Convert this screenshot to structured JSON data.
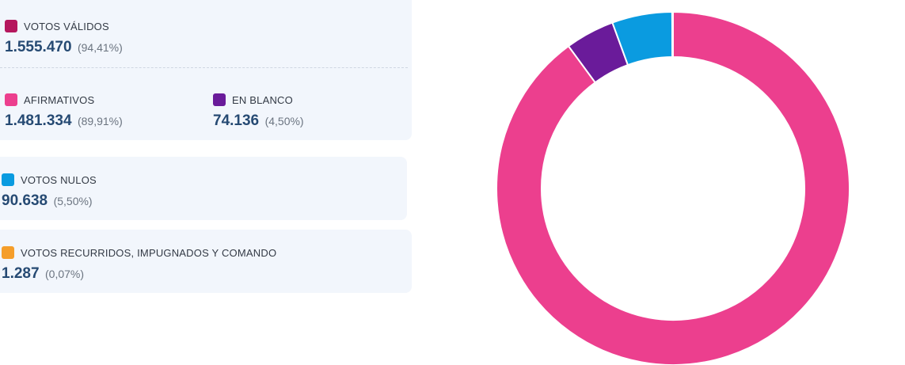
{
  "colors": {
    "validos": "#b5175d",
    "afirmativos": "#ec3f8e",
    "blanco": "#6a1b9a",
    "nulos": "#0a9be0",
    "recurridos": "#f59e2a"
  },
  "legend": {
    "validos": {
      "label": "VOTOS VÁLIDOS",
      "value": "1.555.470",
      "pct": "(94,41%)"
    },
    "afirmativos": {
      "label": "AFIRMATIVOS",
      "value": "1.481.334",
      "pct": "(89,91%)"
    },
    "blanco": {
      "label": "EN BLANCO",
      "value": "74.136",
      "pct": "(4,50%)"
    },
    "nulos": {
      "label": "VOTOS NULOS",
      "value": "90.638",
      "pct": "(5,50%)"
    },
    "recurridos": {
      "label": "VOTOS RECURRIDOS, IMPUGNADOS Y COMANDO",
      "value": "1.287",
      "pct": "(0,07%)"
    }
  },
  "chart_data": {
    "type": "pie",
    "donut": true,
    "categories": [
      "AFIRMATIVOS",
      "EN BLANCO",
      "VOTOS NULOS",
      "VOTOS RECURRIDOS, IMPUGNADOS Y COMANDO"
    ],
    "values": [
      1481334,
      74136,
      90638,
      1287
    ],
    "colors": [
      "#ec3f8e",
      "#6a1b9a",
      "#0a9be0",
      "#f59e2a"
    ],
    "title": "",
    "start": "top",
    "direction": "clockwise"
  }
}
